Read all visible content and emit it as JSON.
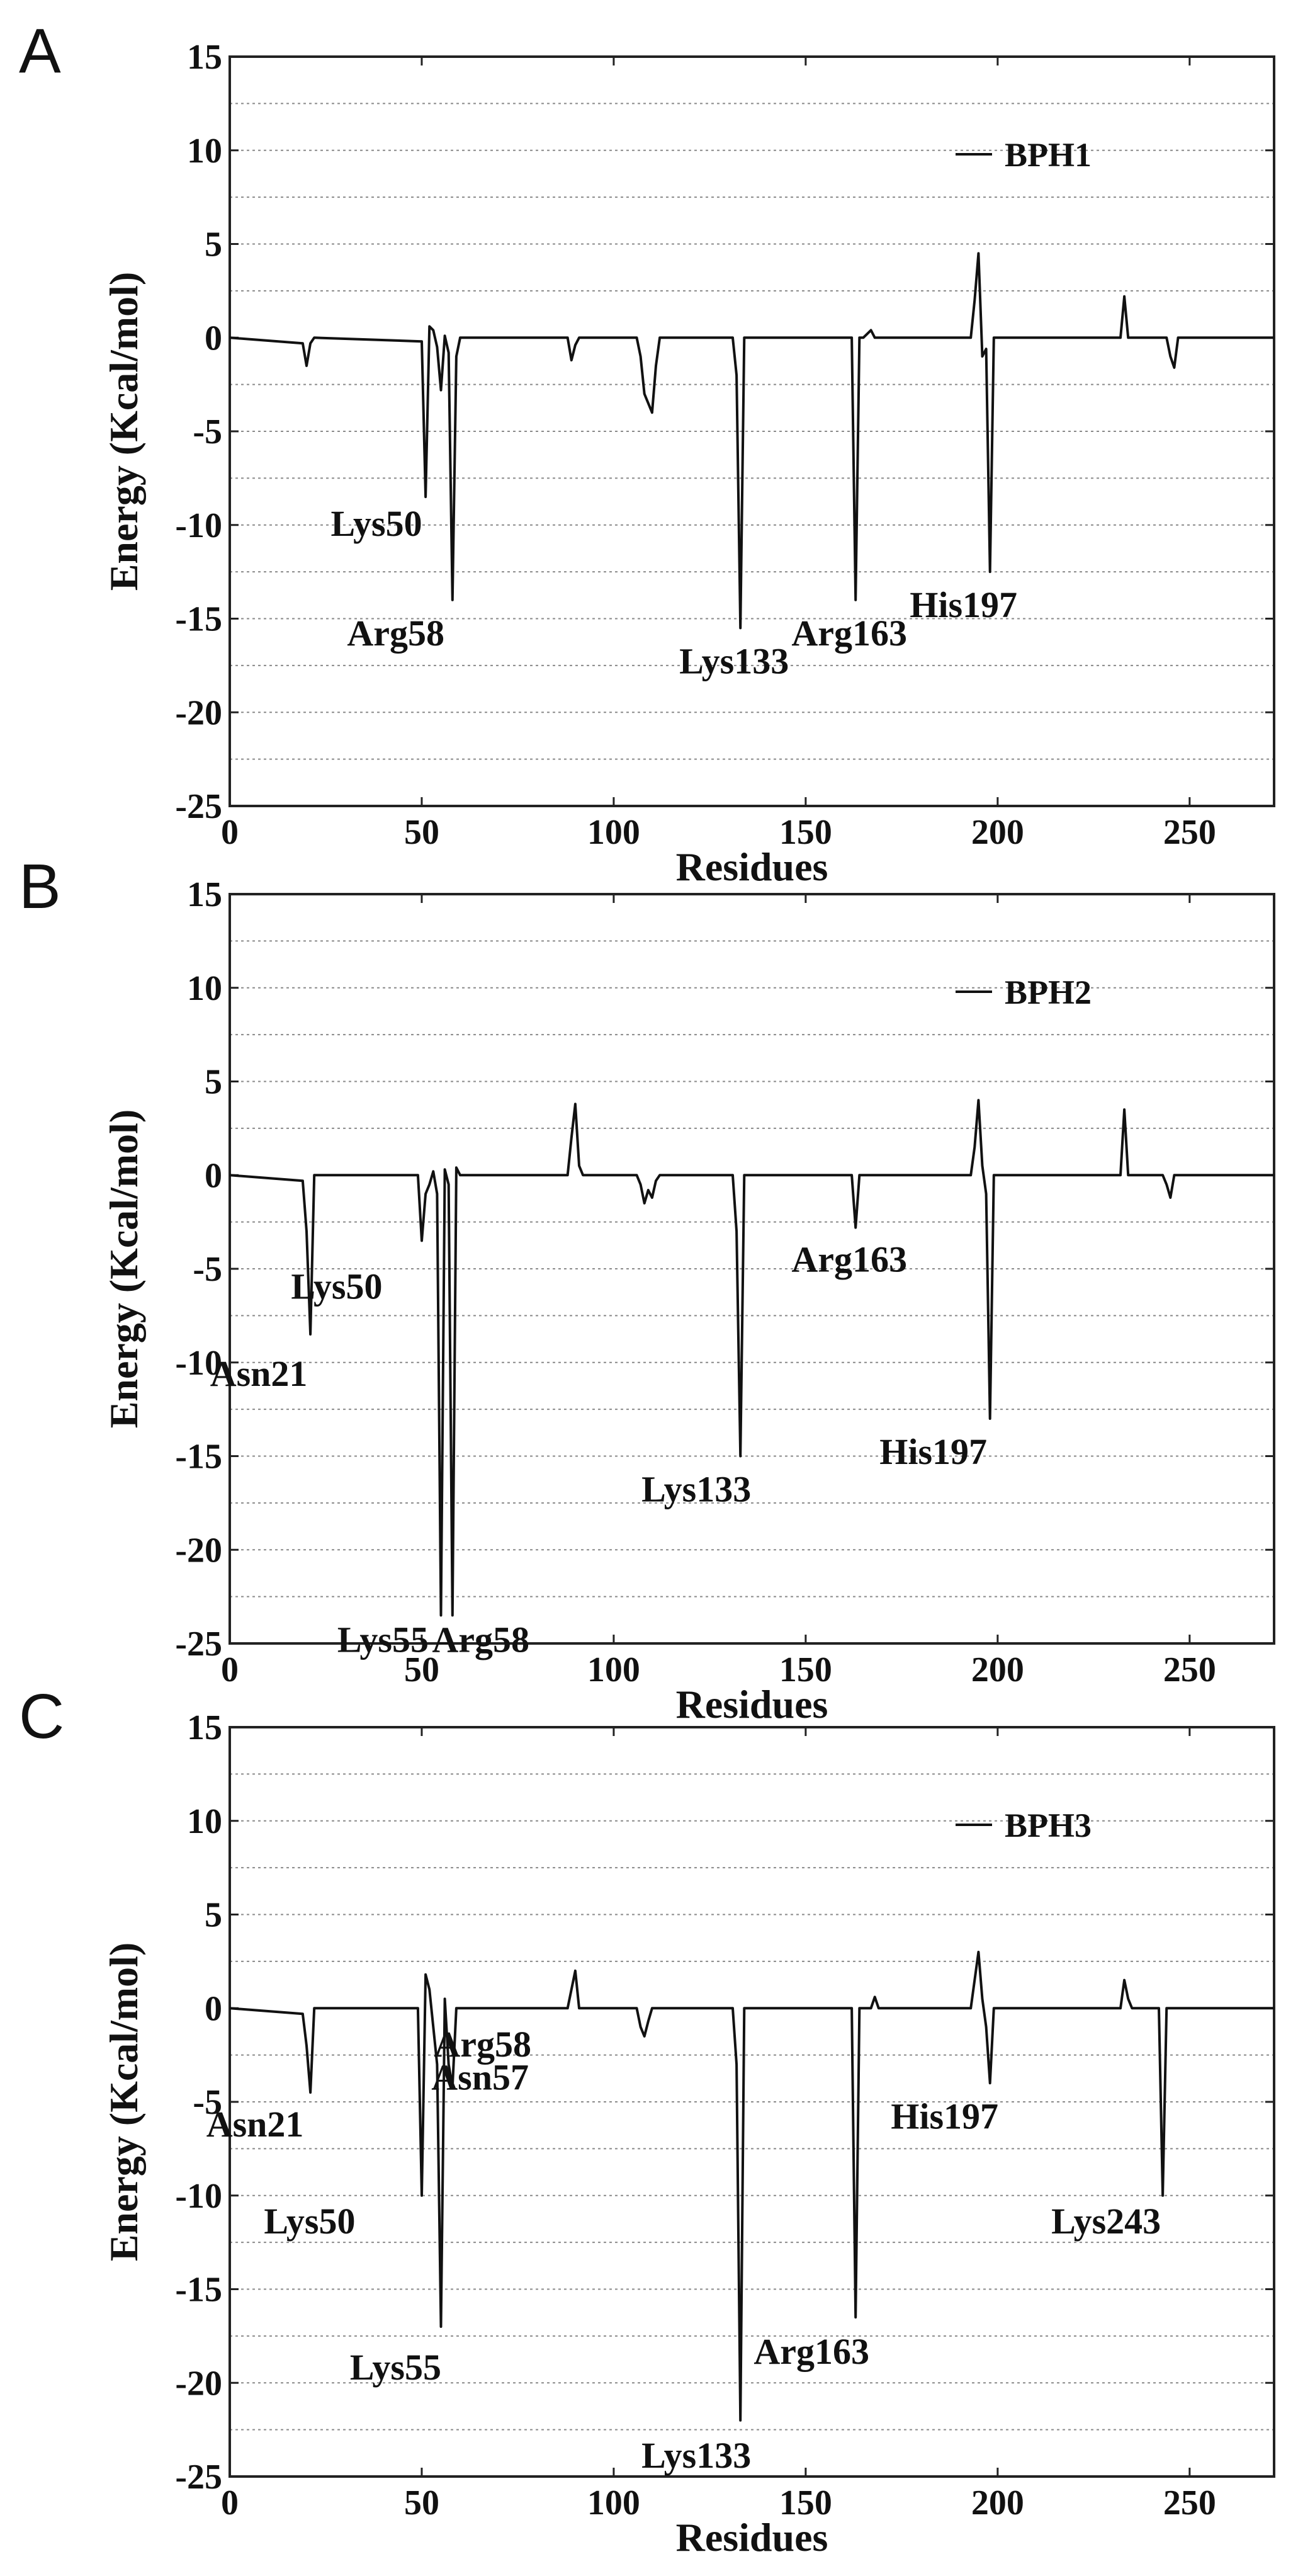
{
  "chart_data": [
    {
      "panel_label": "A",
      "type": "line",
      "xlabel": "Residues",
      "ylabel": "Energy (Kcal/mol)",
      "xlim": [
        0,
        272
      ],
      "ylim": [
        -25,
        15
      ],
      "xticks": [
        0,
        50,
        100,
        150,
        200,
        250
      ],
      "yticks": [
        15,
        10,
        5,
        0,
        -5,
        -10,
        -15,
        -20,
        -25
      ],
      "grid": "dotted horizontal",
      "legend": "top-right",
      "series": [
        {
          "name": "BPH1",
          "x": [
            0,
            19,
            20,
            21,
            22,
            50,
            51,
            52,
            53,
            54,
            55,
            56,
            57,
            58,
            59,
            60,
            88,
            89,
            90,
            91,
            106,
            107,
            108,
            109,
            110,
            111,
            112,
            131,
            132,
            133,
            134,
            162,
            163,
            164,
            165,
            167,
            168,
            193,
            194,
            195,
            196,
            197,
            198,
            199,
            232,
            233,
            234,
            244,
            245,
            246,
            247,
            272
          ],
          "y": [
            0,
            -0.3,
            -1.5,
            -0.3,
            0,
            -0.2,
            -8.5,
            0.6,
            0.4,
            -0.5,
            -2.8,
            0.1,
            -0.8,
            -14,
            -1,
            0,
            0,
            -1.2,
            -0.4,
            0,
            0,
            -1,
            -3,
            -3.5,
            -4,
            -1.5,
            0,
            0,
            -2,
            -15.5,
            0,
            0,
            -14,
            0,
            0,
            0.4,
            0,
            0,
            2,
            4.5,
            -1,
            -0.6,
            -12.5,
            0,
            0,
            2.2,
            0,
            0,
            -1,
            -1.6,
            0,
            0
          ]
        }
      ],
      "annotations": [
        {
          "text": "Lys50",
          "x": 51,
          "y": -8.5
        },
        {
          "text": "Arg58",
          "x": 58,
          "y": -14
        },
        {
          "text": "Lys133",
          "x": 133,
          "y": -15.5
        },
        {
          "text": "Arg163",
          "x": 163,
          "y": -14
        },
        {
          "text": "His197",
          "x": 198,
          "y": -12.5
        }
      ]
    },
    {
      "panel_label": "B",
      "type": "line",
      "xlabel": "Residues",
      "ylabel": "Energy (Kcal/mol)",
      "xlim": [
        0,
        272
      ],
      "ylim": [
        -25,
        15
      ],
      "xticks": [
        0,
        50,
        100,
        150,
        200,
        250
      ],
      "yticks": [
        15,
        10,
        5,
        0,
        -5,
        -10,
        -15,
        -20,
        -25
      ],
      "grid": "dotted horizontal",
      "legend": "top-right",
      "series": [
        {
          "name": "BPH2",
          "x": [
            0,
            19,
            20,
            21,
            22,
            49,
            50,
            51,
            52,
            53,
            54,
            55,
            56,
            57,
            58,
            59,
            60,
            88,
            89,
            90,
            91,
            92,
            106,
            107,
            108,
            109,
            110,
            111,
            112,
            131,
            132,
            133,
            134,
            162,
            163,
            164,
            193,
            194,
            195,
            196,
            197,
            198,
            199,
            232,
            233,
            234,
            243,
            244,
            245,
            246,
            272
          ],
          "y": [
            0,
            -0.3,
            -3,
            -8.5,
            0,
            0,
            -3.5,
            -1,
            -0.5,
            0.2,
            -1,
            -23.5,
            0.3,
            -0.5,
            -23.5,
            0.4,
            0,
            0,
            2,
            3.8,
            0.5,
            0,
            0,
            -0.5,
            -1.5,
            -0.8,
            -1.2,
            -0.3,
            0,
            0,
            -3,
            -15,
            0,
            0,
            -2.8,
            0,
            0,
            1.5,
            4,
            0.5,
            -1,
            -13,
            0,
            0,
            3.5,
            0,
            0,
            -0.5,
            -1.2,
            0,
            0
          ]
        }
      ],
      "annotations": [
        {
          "text": "Lys50",
          "x": 50,
          "y": -3.5
        },
        {
          "text": "Asn21",
          "x": 21,
          "y": -8.5
        },
        {
          "text": "Arg163",
          "x": 163,
          "y": -2.8
        },
        {
          "text": "His197",
          "x": 198,
          "y": -13
        },
        {
          "text": "Lys133",
          "x": 133,
          "y": -15
        },
        {
          "text": "Lys55",
          "x": 55,
          "y": -23.5
        },
        {
          "text": "Arg58",
          "x": 58,
          "y": -23.5
        }
      ]
    },
    {
      "panel_label": "C",
      "type": "line",
      "xlabel": "Residues",
      "ylabel": "Energy (Kcal/mol)",
      "xlim": [
        0,
        272
      ],
      "ylim": [
        -25,
        15
      ],
      "xticks": [
        0,
        50,
        100,
        150,
        200,
        250
      ],
      "yticks": [
        15,
        10,
        5,
        0,
        -5,
        -10,
        -15,
        -20,
        -25
      ],
      "grid": "dotted horizontal",
      "legend": "top-right",
      "series": [
        {
          "name": "BPH3",
          "x": [
            0,
            19,
            20,
            21,
            22,
            49,
            50,
            51,
            52,
            53,
            54,
            55,
            56,
            57,
            58,
            59,
            88,
            89,
            90,
            91,
            106,
            107,
            108,
            109,
            110,
            131,
            132,
            133,
            134,
            162,
            163,
            164,
            167,
            168,
            169,
            193,
            194,
            195,
            196,
            197,
            198,
            199,
            232,
            233,
            234,
            235,
            242,
            243,
            244,
            272
          ],
          "y": [
            0,
            -0.3,
            -2,
            -4.5,
            0,
            0,
            -10,
            1.8,
            1,
            -1,
            -3,
            -17,
            0.5,
            -3,
            -4.2,
            0,
            0,
            1,
            2,
            0,
            0,
            -1,
            -1.5,
            -0.7,
            0,
            0,
            -3,
            -22,
            0,
            0,
            -16.5,
            0,
            0,
            0.6,
            0,
            0,
            1.5,
            3,
            0.5,
            -1,
            -4,
            0,
            0,
            1.5,
            0.5,
            0,
            0,
            -10,
            0,
            0
          ]
        }
      ],
      "annotations": [
        {
          "text": "Asn21",
          "x": 21,
          "y": -4.5
        },
        {
          "text": "Arg58",
          "x": 58,
          "y": -4.2
        },
        {
          "text": "Asn57",
          "x": 57,
          "y": -3
        },
        {
          "text": "His197",
          "x": 198,
          "y": -4
        },
        {
          "text": "Lys50",
          "x": 50,
          "y": -10
        },
        {
          "text": "Lys243",
          "x": 243,
          "y": -10
        },
        {
          "text": "Lys55",
          "x": 55,
          "y": -17
        },
        {
          "text": "Arg163",
          "x": 163,
          "y": -16.5
        },
        {
          "text": "Lys133",
          "x": 133,
          "y": -22
        }
      ]
    }
  ]
}
